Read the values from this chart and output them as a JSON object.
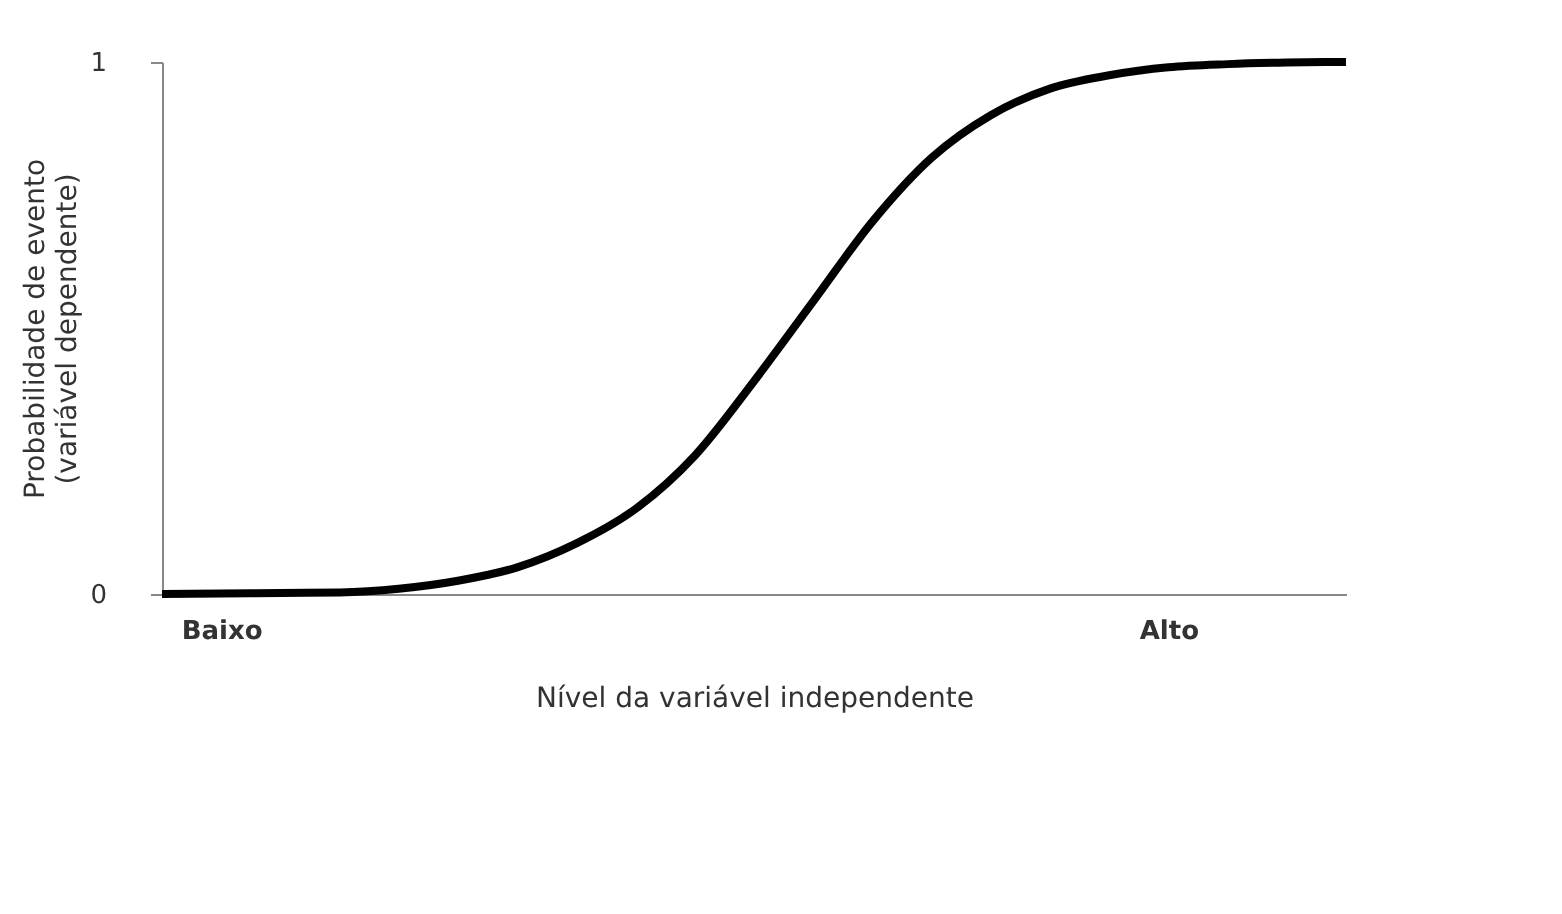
{
  "chart_data": {
    "type": "line",
    "xlabel": "Nível da variável independente",
    "ylabel": "Probabilidade de evento\n(variável dependente)",
    "categories": [
      null,
      "Baixo",
      null,
      null,
      null,
      null,
      null,
      null,
      null,
      null,
      null,
      null,
      null,
      null,
      null,
      null,
      null,
      "Alto",
      null,
      null,
      null
    ],
    "series": [
      {
        "color": "#000000",
        "values": [
          0,
          0.001,
          0.002,
          0.003,
          0.01,
          0.025,
          0.05,
          0.095,
          0.16,
          0.26,
          0.4,
          0.55,
          0.7,
          0.82,
          0.9,
          0.95,
          0.975,
          0.99,
          0.996,
          0.999,
          1.0
        ]
      }
    ],
    "ylim": [
      0,
      1
    ],
    "yticks": [
      0,
      1
    ],
    "grid": false,
    "marker": "none",
    "line_style": "solid"
  }
}
